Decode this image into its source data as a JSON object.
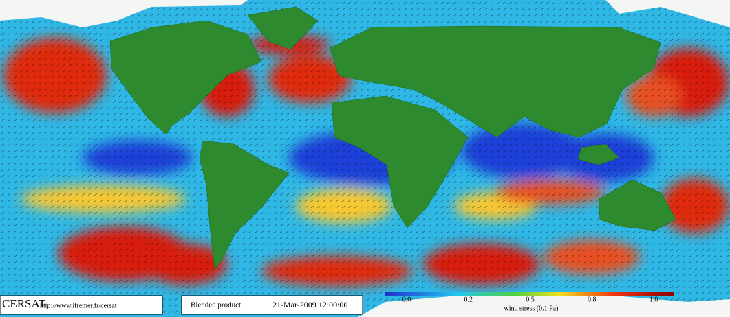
{
  "footer": {
    "brand": "CERSAT",
    "url": "http://www.ifremer.fr/cersat",
    "product": "Blended product",
    "datetime": "21-Mar-2009 12:00:00"
  },
  "colorbar": {
    "ticks": [
      "0.0",
      "0.2",
      "0.5",
      "0.8",
      "1.0"
    ],
    "label": "wind stress (0.1 Pa)"
  }
}
